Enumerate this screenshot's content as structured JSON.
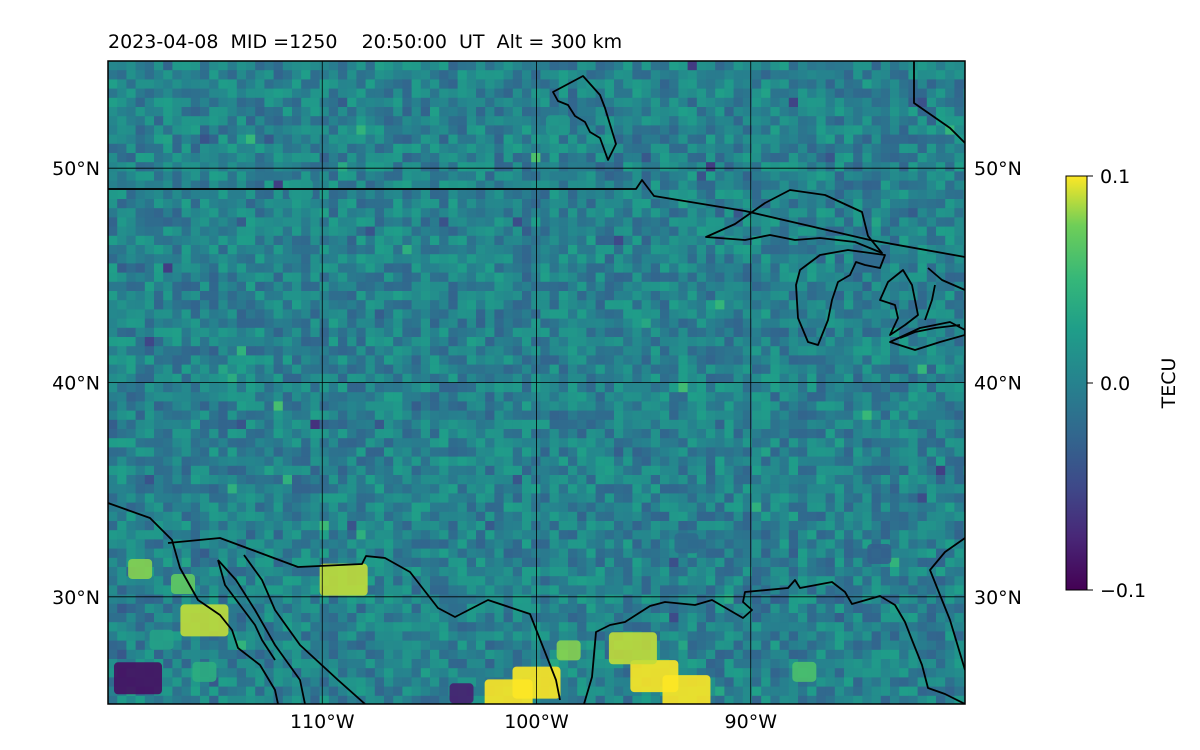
{
  "title": "2023-04-08  MID =1250    20:50:00  UT  Alt = 300 km",
  "map": {
    "lat_range": [
      25,
      55
    ],
    "lon_range": [
      -120,
      -80
    ],
    "lat_ticks": [
      {
        "value": 50,
        "label": "50°N"
      },
      {
        "value": 40,
        "label": "40°N"
      },
      {
        "value": 30,
        "label": "30°N"
      }
    ],
    "lon_ticks": [
      {
        "value": -110,
        "label": "110°W"
      },
      {
        "value": -100,
        "label": "100°W"
      },
      {
        "value": -90,
        "label": "90°W"
      }
    ],
    "grid": true,
    "base_color": "#2a7f8e"
  },
  "chart_data": {
    "type": "heatmap",
    "title": "2023-04-08  MID =1250    20:50:00  UT  Alt = 300 km",
    "value_range": [
      -0.1,
      0.1
    ],
    "colormap": "viridis",
    "colorbar": {
      "label": "TECU",
      "ticks": [
        {
          "value": 0.1,
          "label": "0.1"
        },
        {
          "value": 0.0,
          "label": "0.0"
        },
        {
          "value": -0.1,
          "label": "−0.1"
        }
      ]
    },
    "patches": [
      {
        "lon": -118.6,
        "lat": 26.2,
        "value": -0.09
      },
      {
        "lon": -115.5,
        "lat": 26.5,
        "value": 0.04
      },
      {
        "lon": -117.5,
        "lat": 28.0,
        "value": 0.03
      },
      {
        "lon": -116.5,
        "lat": 30.6,
        "value": 0.07
      },
      {
        "lon": -118.5,
        "lat": 31.3,
        "value": 0.08
      },
      {
        "lon": -115.5,
        "lat": 28.9,
        "value": 0.09
      },
      {
        "lon": -109.0,
        "lat": 30.8,
        "value": 0.09
      },
      {
        "lon": -100.0,
        "lat": 26.0,
        "value": 0.1
      },
      {
        "lon": -98.5,
        "lat": 27.5,
        "value": 0.08
      },
      {
        "lon": -94.5,
        "lat": 26.3,
        "value": 0.1
      },
      {
        "lon": -93.0,
        "lat": 25.6,
        "value": 0.1
      },
      {
        "lon": -95.5,
        "lat": 27.6,
        "value": 0.09
      },
      {
        "lon": -101.3,
        "lat": 25.4,
        "value": 0.1
      },
      {
        "lon": -103.5,
        "lat": 25.5,
        "value": -0.08
      },
      {
        "lon": -87.5,
        "lat": 26.5,
        "value": 0.06
      },
      {
        "lon": -84.0,
        "lat": 32.0,
        "value": -0.03
      },
      {
        "lon": -93.0,
        "lat": 32.5,
        "value": -0.02
      },
      {
        "lon": -111.0,
        "lat": 49.0,
        "value": 0.02
      },
      {
        "lon": -99.0,
        "lat": 52.0,
        "value": 0.02
      }
    ]
  }
}
